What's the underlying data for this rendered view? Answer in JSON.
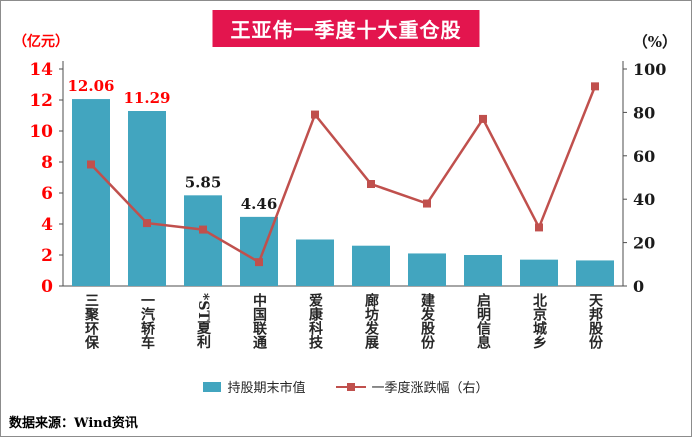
{
  "title": "王亚伟一季度十大重仓股",
  "left_unit": "（亿元）",
  "right_unit": "（%）",
  "source": "数据来源：Wind资讯",
  "legend": {
    "bar_label": "持股期末市值",
    "line_label": "一季度涨跌幅（右）"
  },
  "colors": {
    "bar": "#42a5bf",
    "line": "#c0504d",
    "title_bg": "#e3154e",
    "left_tick": "#ff0000",
    "right_tick": "#1a1a1a",
    "axis": "#4d4d4d",
    "label_red": "#ff0000",
    "label_dark": "#1a1a1a"
  },
  "chart_data": {
    "type": "bar+line",
    "title": "王亚伟一季度十大重仓股",
    "categories": [
      "三聚环保",
      "一汽轿车",
      "*ST夏利",
      "中国联通",
      "爱康科技",
      "廊坊发展",
      "建发股份",
      "启明信息",
      "北京城乡",
      "天邦股份"
    ],
    "series": [
      {
        "name": "持股期末市值",
        "type": "bar",
        "axis": "left",
        "values": [
          12.06,
          11.29,
          5.85,
          4.46,
          3.0,
          2.6,
          2.1,
          2.0,
          1.7,
          1.65
        ],
        "labels": [
          "12.06",
          "11.29",
          "5.85",
          "4.46",
          "",
          "",
          "",
          "",
          "",
          ""
        ],
        "label_colors": [
          "#ff0000",
          "#ff0000",
          "#1a1a1a",
          "#1a1a1a",
          "",
          "",
          "",
          "",
          "",
          ""
        ]
      },
      {
        "name": "一季度涨跌幅（右）",
        "type": "line",
        "axis": "right",
        "values": [
          56,
          29,
          26,
          11,
          79,
          47,
          38,
          77,
          27,
          92
        ]
      }
    ],
    "left_axis": {
      "label": "亿元",
      "min": 0,
      "max": 14,
      "ticks": [
        0,
        2,
        4,
        6,
        8,
        10,
        12,
        14
      ]
    },
    "right_axis": {
      "label": "%",
      "min": 0,
      "max": 100,
      "ticks": [
        0,
        20,
        40,
        60,
        80,
        100
      ]
    },
    "grid": false,
    "legend_position": "bottom"
  }
}
